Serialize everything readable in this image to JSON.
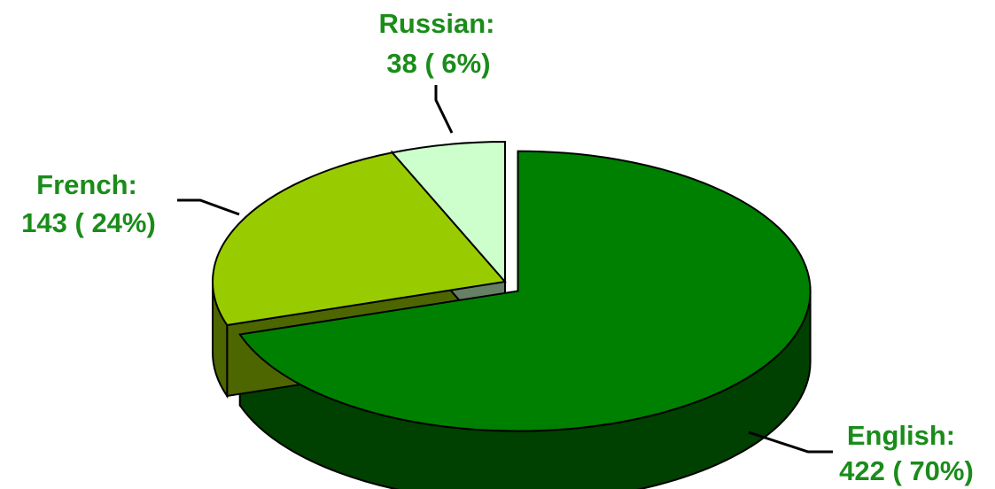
{
  "chart_data": {
    "type": "pie",
    "title": "",
    "legend": "none",
    "grid": false,
    "slices": [
      {
        "name": "English",
        "value": 422,
        "percent_label": "422 ( 70%)",
        "name_label": "English:",
        "color": "#008000",
        "side_color": "#004000",
        "exploded": true
      },
      {
        "name": "French",
        "value": 143,
        "percent_label": "143 ( 24%)",
        "name_label": "French:",
        "color": "#99cc00",
        "side_color": "#4d6600",
        "exploded": false
      },
      {
        "name": "Russian",
        "value": 38,
        "percent_label": "38 ( 6%)",
        "name_label": "Russian:",
        "color": "#ccffcc",
        "side_color": "#668066",
        "exploded": false
      }
    ],
    "label_color": "#1a8c1a"
  }
}
